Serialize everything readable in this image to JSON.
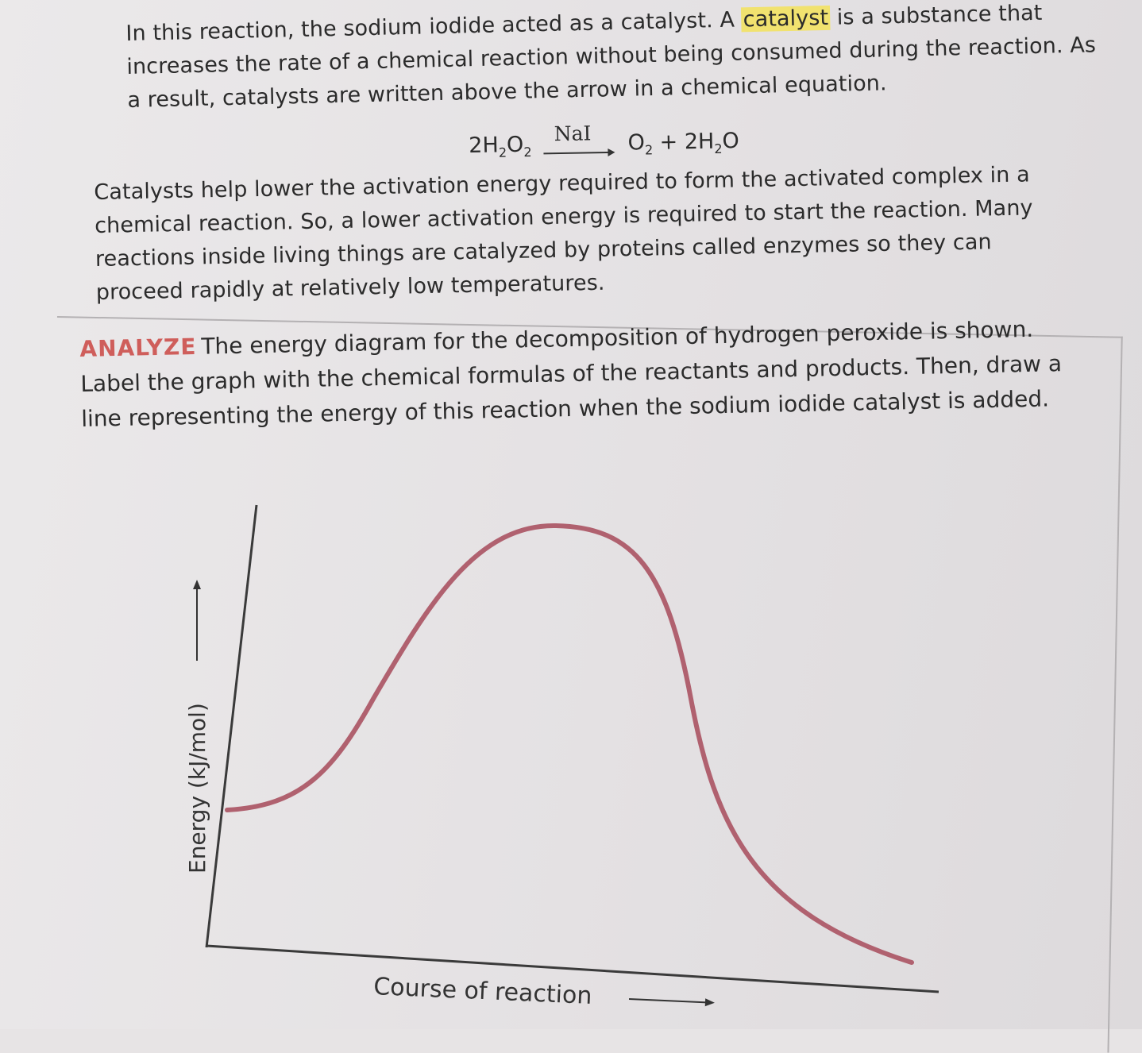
{
  "paragraph1": {
    "before": "In this reaction, the sodium iodide acted as a catalyst. A ",
    "highlight": "catalyst",
    "after": " is a substance that increases the rate of a chemical reaction without being consumed during the reaction. As a result, catalysts are written above the arrow in a chemical equation."
  },
  "equation": {
    "reactant_coef": "2H",
    "reactant_sub1": "2",
    "reactant_o": "O",
    "reactant_sub2": "2",
    "catalyst": "NaI",
    "product1": "O",
    "product1_sub": "2",
    "plus": " + ",
    "product2_coef": "2H",
    "product2_sub": "2",
    "product2_o": "O"
  },
  "paragraph2": "Catalysts help lower the activation energy required to form the activated complex in a chemical reaction. So, a lower activation energy is required to start the reaction. Many reactions inside living things are catalyzed by proteins called enzymes so they can proceed rapidly at relatively low temperatures.",
  "analyze": {
    "label": "ANALYZE",
    "text": "The energy diagram for the decomposition of hydrogen peroxide is shown. Label the graph with the chemical formulas of the reactants and products. Then, draw a line representing the energy of this reaction when the sodium iodide catalyst is added."
  },
  "diagram": {
    "ylabel": "Energy (kJ/mol)",
    "xlabel": "Course of reaction",
    "curve_color": "#b0616f",
    "axis_color": "#3a3a3a"
  }
}
